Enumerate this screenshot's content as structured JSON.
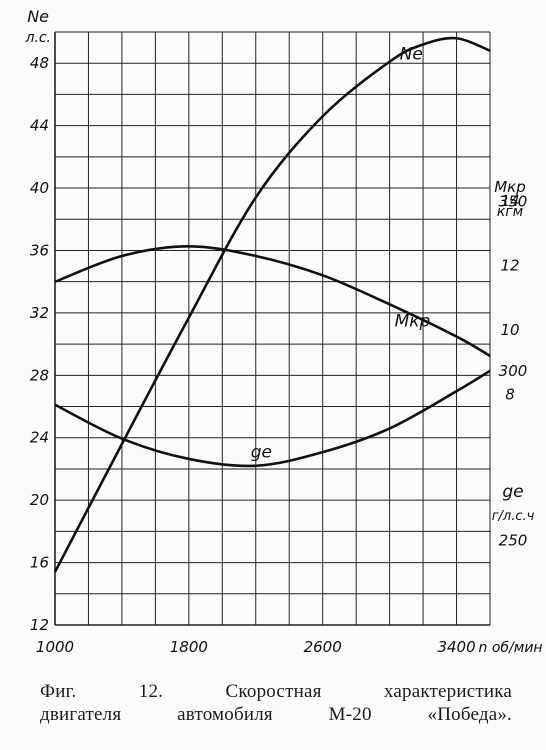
{
  "chart_data": [
    {
      "type": "line",
      "title": "",
      "xlabel": "n об/мин",
      "x_unit": "об/мин",
      "x_tick_labels": [
        "1000",
        "1800",
        "2600",
        "3400"
      ],
      "x_ticks": [
        1000,
        1800,
        2600,
        3400
      ],
      "xlim": [
        1000,
        3600
      ],
      "grid": true,
      "axes": [
        {
          "id": "ne",
          "label_line1": "Ne",
          "label_line2": "л.с.",
          "side": "left",
          "ylim": [
            12,
            50
          ],
          "ticks": [
            12,
            16,
            20,
            24,
            28,
            32,
            36,
            40,
            44,
            48
          ]
        },
        {
          "id": "mkr",
          "label_line1": "Mкр",
          "label_line2": "кгм",
          "side": "right",
          "ylim": [
            0.85,
            19.25
          ],
          "ticks": [
            8,
            10,
            12,
            14
          ]
        },
        {
          "id": "ge",
          "label_line1": "ge",
          "label_line2": "г/л.с.ч",
          "side": "right",
          "ylim": [
            225,
            400
          ],
          "ticks": [
            250,
            300,
            350
          ]
        }
      ],
      "series": [
        {
          "name": "Ne",
          "axis": "ne",
          "x": [
            1000,
            1400,
            1800,
            2200,
            2600,
            3000,
            3200,
            3400,
            3600
          ],
          "y": [
            15.4,
            23.6,
            31.7,
            39.4,
            44.6,
            48.1,
            49.2,
            49.6,
            48.8
          ]
        },
        {
          "name": "Mкр",
          "axis": "mkr",
          "x": [
            1000,
            1400,
            1800,
            2200,
            2600,
            3000,
            3400,
            3600
          ],
          "y": [
            11.5,
            12.3,
            12.6,
            12.3,
            11.7,
            10.8,
            9.8,
            9.2
          ]
        },
        {
          "name": "ge",
          "axis": "ge",
          "x": [
            1000,
            1400,
            1800,
            2200,
            2600,
            3000,
            3400,
            3600
          ],
          "y": [
            290,
            280,
            274,
            272,
            276,
            283,
            294,
            300
          ]
        }
      ]
    }
  ],
  "caption": {
    "line1": "Фиг. 12. Скоростная характеристика",
    "line2": "двигателя автомобиля М-20 «Победа»."
  },
  "colors": {
    "ink": "#111111",
    "paper": "#fbfbf9"
  }
}
